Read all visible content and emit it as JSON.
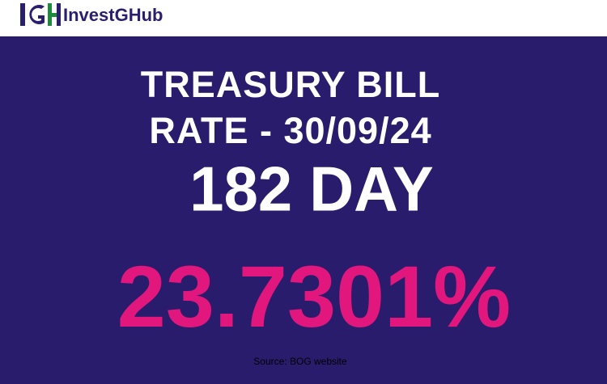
{
  "header": {
    "brand_name": "InvestGHub",
    "logo_letters": "IGH",
    "colors": {
      "logo_blue": "#2a1f6e",
      "logo_green": "#1e8a3c"
    }
  },
  "main": {
    "title_line1": "TREASURY BILL",
    "title_line2": "RATE - 30/09/24",
    "tenor": "182 DAY",
    "rate": "23.7301%",
    "source": "Source: BOG website",
    "colors": {
      "background": "#2a1c6c",
      "rate": "#e2177e",
      "text": "#ffffff"
    }
  }
}
